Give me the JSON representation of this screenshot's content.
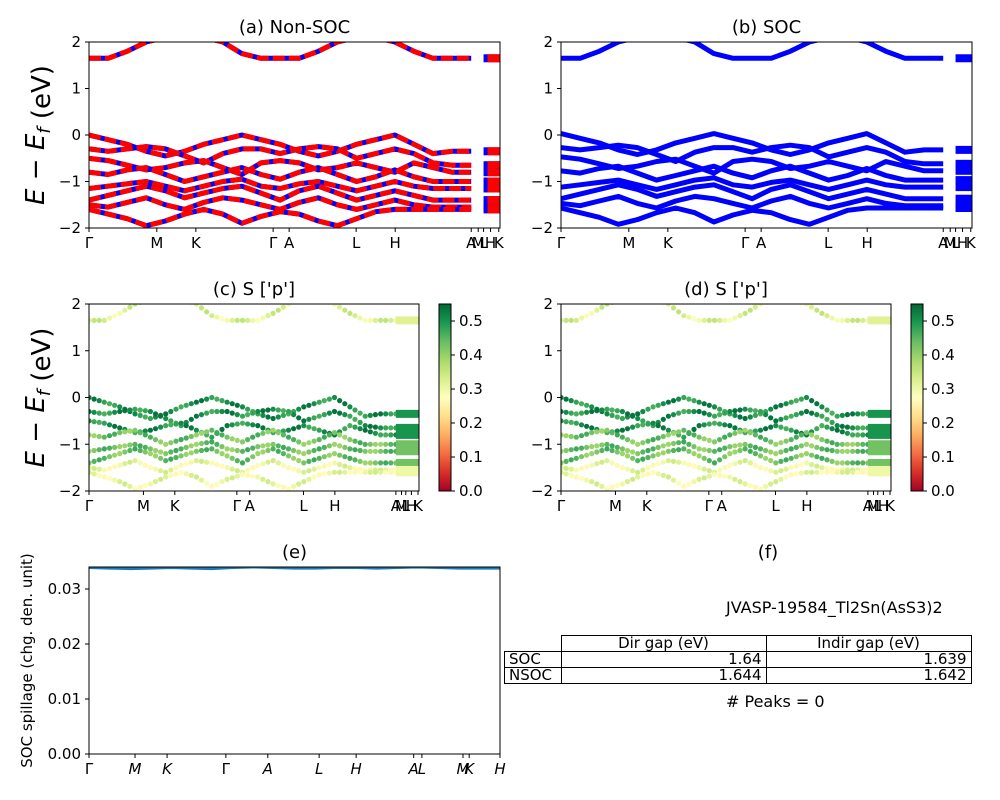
{
  "chart_data": [
    {
      "id": "a",
      "type": "line",
      "title": "(a) Non-SOC",
      "ylabel": "E − E_f (eV)",
      "ylim": [
        -2,
        2
      ],
      "yticks": [
        "2",
        "1",
        "0",
        "−1",
        "−2"
      ],
      "yticks_values": [
        2,
        1,
        0,
        -1,
        -2
      ],
      "kpath_labels": [
        "Γ",
        "M",
        "K",
        "Γ",
        "A",
        "L",
        "H",
        "A",
        "M",
        "L",
        "H",
        "K"
      ],
      "kpath_label_positions": [
        0,
        0.165,
        0.26,
        0.448,
        0.487,
        0.65,
        0.745,
        0.93,
        0.947,
        0.96,
        0.977,
        0.997
      ],
      "colors": [
        "#0000ff",
        "#ff0000"
      ],
      "style": "dashed red over blue",
      "bands": [
        [
          1.65,
          1.65,
          1.8,
          2.0,
          2.1,
          2.1,
          2.1,
          2.0,
          1.75,
          1.65,
          1.65,
          1.65,
          1.8,
          2.0,
          2.1,
          2.1,
          2.0,
          1.8,
          1.65,
          1.65,
          1.65
        ],
        [
          0.0,
          -0.1,
          -0.2,
          -0.35,
          -0.45,
          -0.35,
          -0.2,
          -0.1,
          0.0,
          -0.1,
          -0.2,
          -0.35,
          -0.45,
          -0.35,
          -0.2,
          -0.1,
          0.0,
          -0.2,
          -0.4,
          -0.35,
          -0.35
        ],
        [
          -0.3,
          -0.35,
          -0.3,
          -0.25,
          -0.3,
          -0.45,
          -0.6,
          -0.4,
          -0.3,
          -0.3,
          -0.4,
          -0.3,
          -0.25,
          -0.3,
          -0.5,
          -0.4,
          -0.3,
          -0.4,
          -0.6,
          -0.65,
          -0.65
        ],
        [
          -0.5,
          -0.55,
          -0.65,
          -0.75,
          -0.7,
          -0.6,
          -0.55,
          -0.7,
          -0.85,
          -0.6,
          -0.55,
          -0.6,
          -0.75,
          -0.7,
          -0.6,
          -0.7,
          -0.8,
          -0.6,
          -0.7,
          -0.8,
          -0.8
        ],
        [
          -0.8,
          -0.85,
          -0.75,
          -0.7,
          -0.85,
          -1.0,
          -0.9,
          -0.8,
          -0.7,
          -0.85,
          -0.95,
          -0.8,
          -0.7,
          -0.85,
          -1.0,
          -0.9,
          -0.75,
          -0.9,
          -1.0,
          -1.0,
          -1.0
        ],
        [
          -1.15,
          -1.1,
          -1.05,
          -1.0,
          -1.1,
          -1.2,
          -1.1,
          -1.0,
          -0.95,
          -1.1,
          -1.15,
          -1.05,
          -1.0,
          -1.1,
          -1.2,
          -1.1,
          -1.0,
          -1.1,
          -1.15,
          -1.15,
          -1.15
        ],
        [
          -1.4,
          -1.3,
          -1.2,
          -1.1,
          -1.2,
          -1.35,
          -1.25,
          -1.15,
          -1.1,
          -1.25,
          -1.4,
          -1.2,
          -1.1,
          -1.25,
          -1.4,
          -1.3,
          -1.2,
          -1.3,
          -1.4,
          -1.4,
          -1.4
        ],
        [
          -1.5,
          -1.55,
          -1.45,
          -1.35,
          -1.5,
          -1.6,
          -1.45,
          -1.35,
          -1.4,
          -1.5,
          -1.6,
          -1.45,
          -1.35,
          -1.5,
          -1.6,
          -1.5,
          -1.4,
          -1.5,
          -1.55,
          -1.55,
          -1.55
        ],
        [
          -1.6,
          -1.7,
          -1.8,
          -1.95,
          -1.85,
          -1.7,
          -1.6,
          -1.7,
          -1.9,
          -1.75,
          -1.65,
          -1.7,
          -1.85,
          -1.95,
          -1.8,
          -1.65,
          -1.6,
          -1.6,
          -1.6,
          -1.6,
          -1.6
        ]
      ]
    },
    {
      "id": "b",
      "type": "line",
      "title": "(b) SOC",
      "ylim": [
        -2,
        2
      ],
      "yticks": [
        "2",
        "1",
        "0",
        "−1",
        "−2"
      ],
      "yticks_values": [
        2,
        1,
        0,
        -1,
        -2
      ],
      "kpath_labels": [
        "Γ",
        "M",
        "K",
        "Γ",
        "A",
        "L",
        "H",
        "A",
        "M",
        "L",
        "H",
        "K"
      ],
      "kpath_label_positions": [
        0,
        0.165,
        0.26,
        0.448,
        0.487,
        0.65,
        0.745,
        0.93,
        0.947,
        0.96,
        0.977,
        0.997
      ],
      "colors": [
        "#0000ff"
      ],
      "style": "solid blue",
      "bands": "same shape as (a), values shifted by SOC splitting"
    },
    {
      "id": "c",
      "type": "scatter",
      "title": "(c)  S ['p']",
      "ylabel": "E − E_f (eV)",
      "ylim": [
        -2,
        2
      ],
      "yticks": [
        "2",
        "1",
        "0",
        "−1",
        "−2"
      ],
      "yticks_values": [
        2,
        1,
        0,
        -1,
        -2
      ],
      "kpath_labels": [
        "Γ",
        "M",
        "K",
        "Γ",
        "A",
        "L",
        "H",
        "A",
        "M",
        "L",
        "H",
        "K"
      ],
      "kpath_label_positions": [
        0,
        0.165,
        0.26,
        0.448,
        0.487,
        0.65,
        0.745,
        0.93,
        0.947,
        0.96,
        0.977,
        0.997
      ],
      "colorbar": {
        "colormap": "RdYlGn",
        "range": [
          0.0,
          0.55
        ],
        "ticks": [
          "0.5",
          "0.4",
          "0.3",
          "0.2",
          "0.1",
          "0.0"
        ],
        "tick_values": [
          0.5,
          0.4,
          0.3,
          0.2,
          0.1,
          0.0
        ]
      }
    },
    {
      "id": "d",
      "type": "scatter",
      "title": "(d) S ['p']",
      "ylim": [
        -2,
        2
      ],
      "yticks": [
        "2",
        "1",
        "0",
        "−1",
        "−2"
      ],
      "yticks_values": [
        2,
        1,
        0,
        -1,
        -2
      ],
      "kpath_labels": [
        "Γ",
        "M",
        "K",
        "Γ",
        "A",
        "L",
        "H",
        "A",
        "M",
        "L",
        "H",
        "K"
      ],
      "kpath_label_positions": [
        0,
        0.165,
        0.26,
        0.448,
        0.487,
        0.65,
        0.745,
        0.93,
        0.947,
        0.96,
        0.977,
        0.997
      ],
      "colorbar": {
        "colormap": "RdYlGn",
        "range": [
          0.0,
          0.55
        ],
        "ticks": [
          "0.5",
          "0.4",
          "0.3",
          "0.2",
          "0.1",
          "0.0"
        ],
        "tick_values": [
          0.5,
          0.4,
          0.3,
          0.2,
          0.1,
          0.0
        ]
      }
    },
    {
      "id": "e",
      "type": "line",
      "title": "(e)",
      "ylabel": "SOC spillage (chg. den. unit)",
      "ylim": [
        0.0,
        0.034
      ],
      "yticks": [
        "0.03",
        "0.02",
        "0.01",
        "0.00"
      ],
      "yticks_values": [
        0.03,
        0.02,
        0.01,
        0.0
      ],
      "kpath_labels": [
        "Γ",
        "M",
        "K",
        "Γ",
        "A",
        "L",
        "H",
        "A",
        "L",
        "M",
        "K",
        "H"
      ],
      "kpath_label_positions": [
        0,
        0.112,
        0.19,
        0.333,
        0.435,
        0.56,
        0.65,
        0.79,
        0.81,
        0.91,
        0.925,
        1.0
      ],
      "series": [
        {
          "color": "#1f77b4",
          "values": [
            0.0339,
            0.0338,
            0.0337,
            0.0338,
            0.0339,
            0.0338,
            0.0337,
            0.0339,
            0.034,
            0.0339,
            0.0338,
            0.0338,
            0.0339,
            0.0339,
            0.0338,
            0.0339,
            0.034,
            0.0339,
            0.0338,
            0.0338,
            0.0338
          ]
        }
      ]
    },
    {
      "id": "f",
      "type": "table",
      "title": "(f)",
      "material": "JVASP-19584_Tl2Sn(AsS3)2",
      "columns": [
        "Dir gap (eV)",
        "Indir gap (eV)"
      ],
      "rows": [
        {
          "label": "SOC",
          "values": [
            "1.64",
            "1.639"
          ]
        },
        {
          "label": "NSOC",
          "values": [
            "1.644",
            "1.642"
          ]
        }
      ],
      "peaks": "# Peaks = 0"
    }
  ]
}
